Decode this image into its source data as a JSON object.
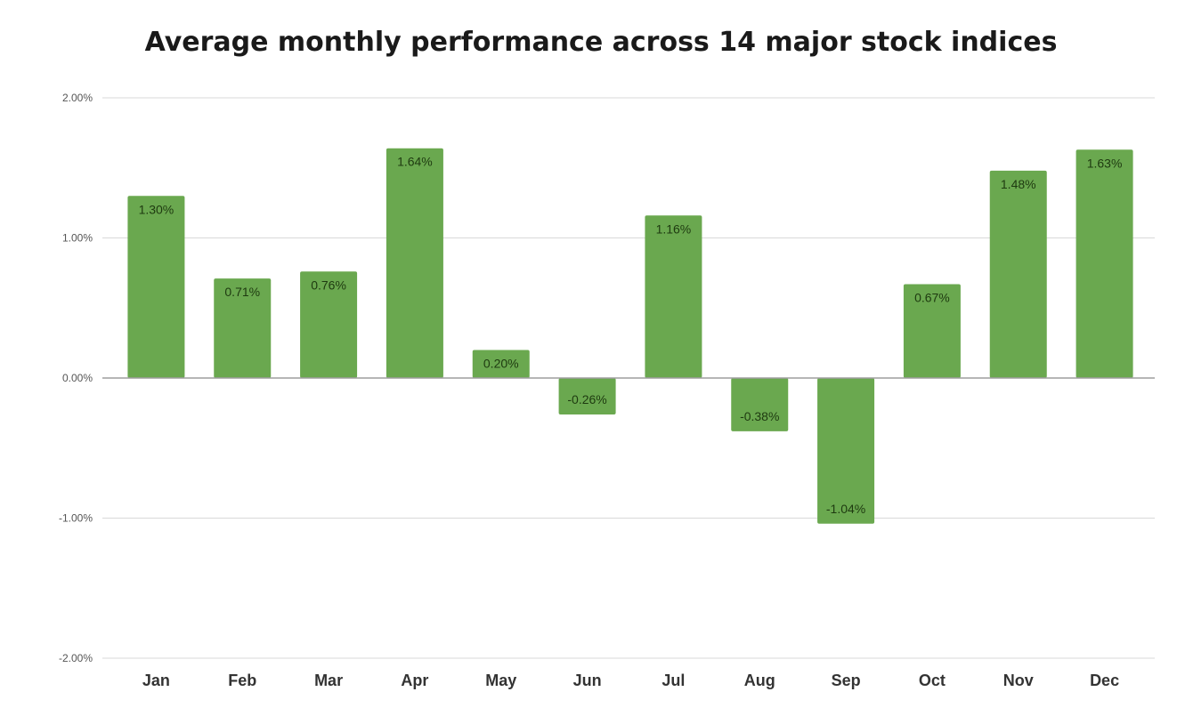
{
  "chart_data": {
    "type": "bar",
    "title": "Average monthly performance across 14 major stock indices",
    "xlabel": "",
    "ylabel": "",
    "categories": [
      "Jan",
      "Feb",
      "Mar",
      "Apr",
      "May",
      "Jun",
      "Jul",
      "Aug",
      "Sep",
      "Oct",
      "Nov",
      "Dec"
    ],
    "values": [
      1.3,
      0.71,
      0.76,
      1.64,
      0.2,
      -0.26,
      1.16,
      -0.38,
      -1.04,
      0.67,
      1.48,
      1.63
    ],
    "data_labels": [
      "1.30%",
      "0.71%",
      "0.76%",
      "1.64%",
      "0.20%",
      "-0.26%",
      "1.16%",
      "-0.38%",
      "-1.04%",
      "0.67%",
      "1.48%",
      "1.63%"
    ],
    "ylim": [
      -2,
      2
    ],
    "yticks": [
      2,
      1,
      0,
      -1,
      -2
    ],
    "ytick_labels": [
      "2.00%",
      "1.00%",
      "0.00%",
      "-1.00%",
      "-2.00%"
    ],
    "grid": true,
    "legend": "none",
    "bar_color": "#6aa84f",
    "label_color": "#1e3a10"
  }
}
